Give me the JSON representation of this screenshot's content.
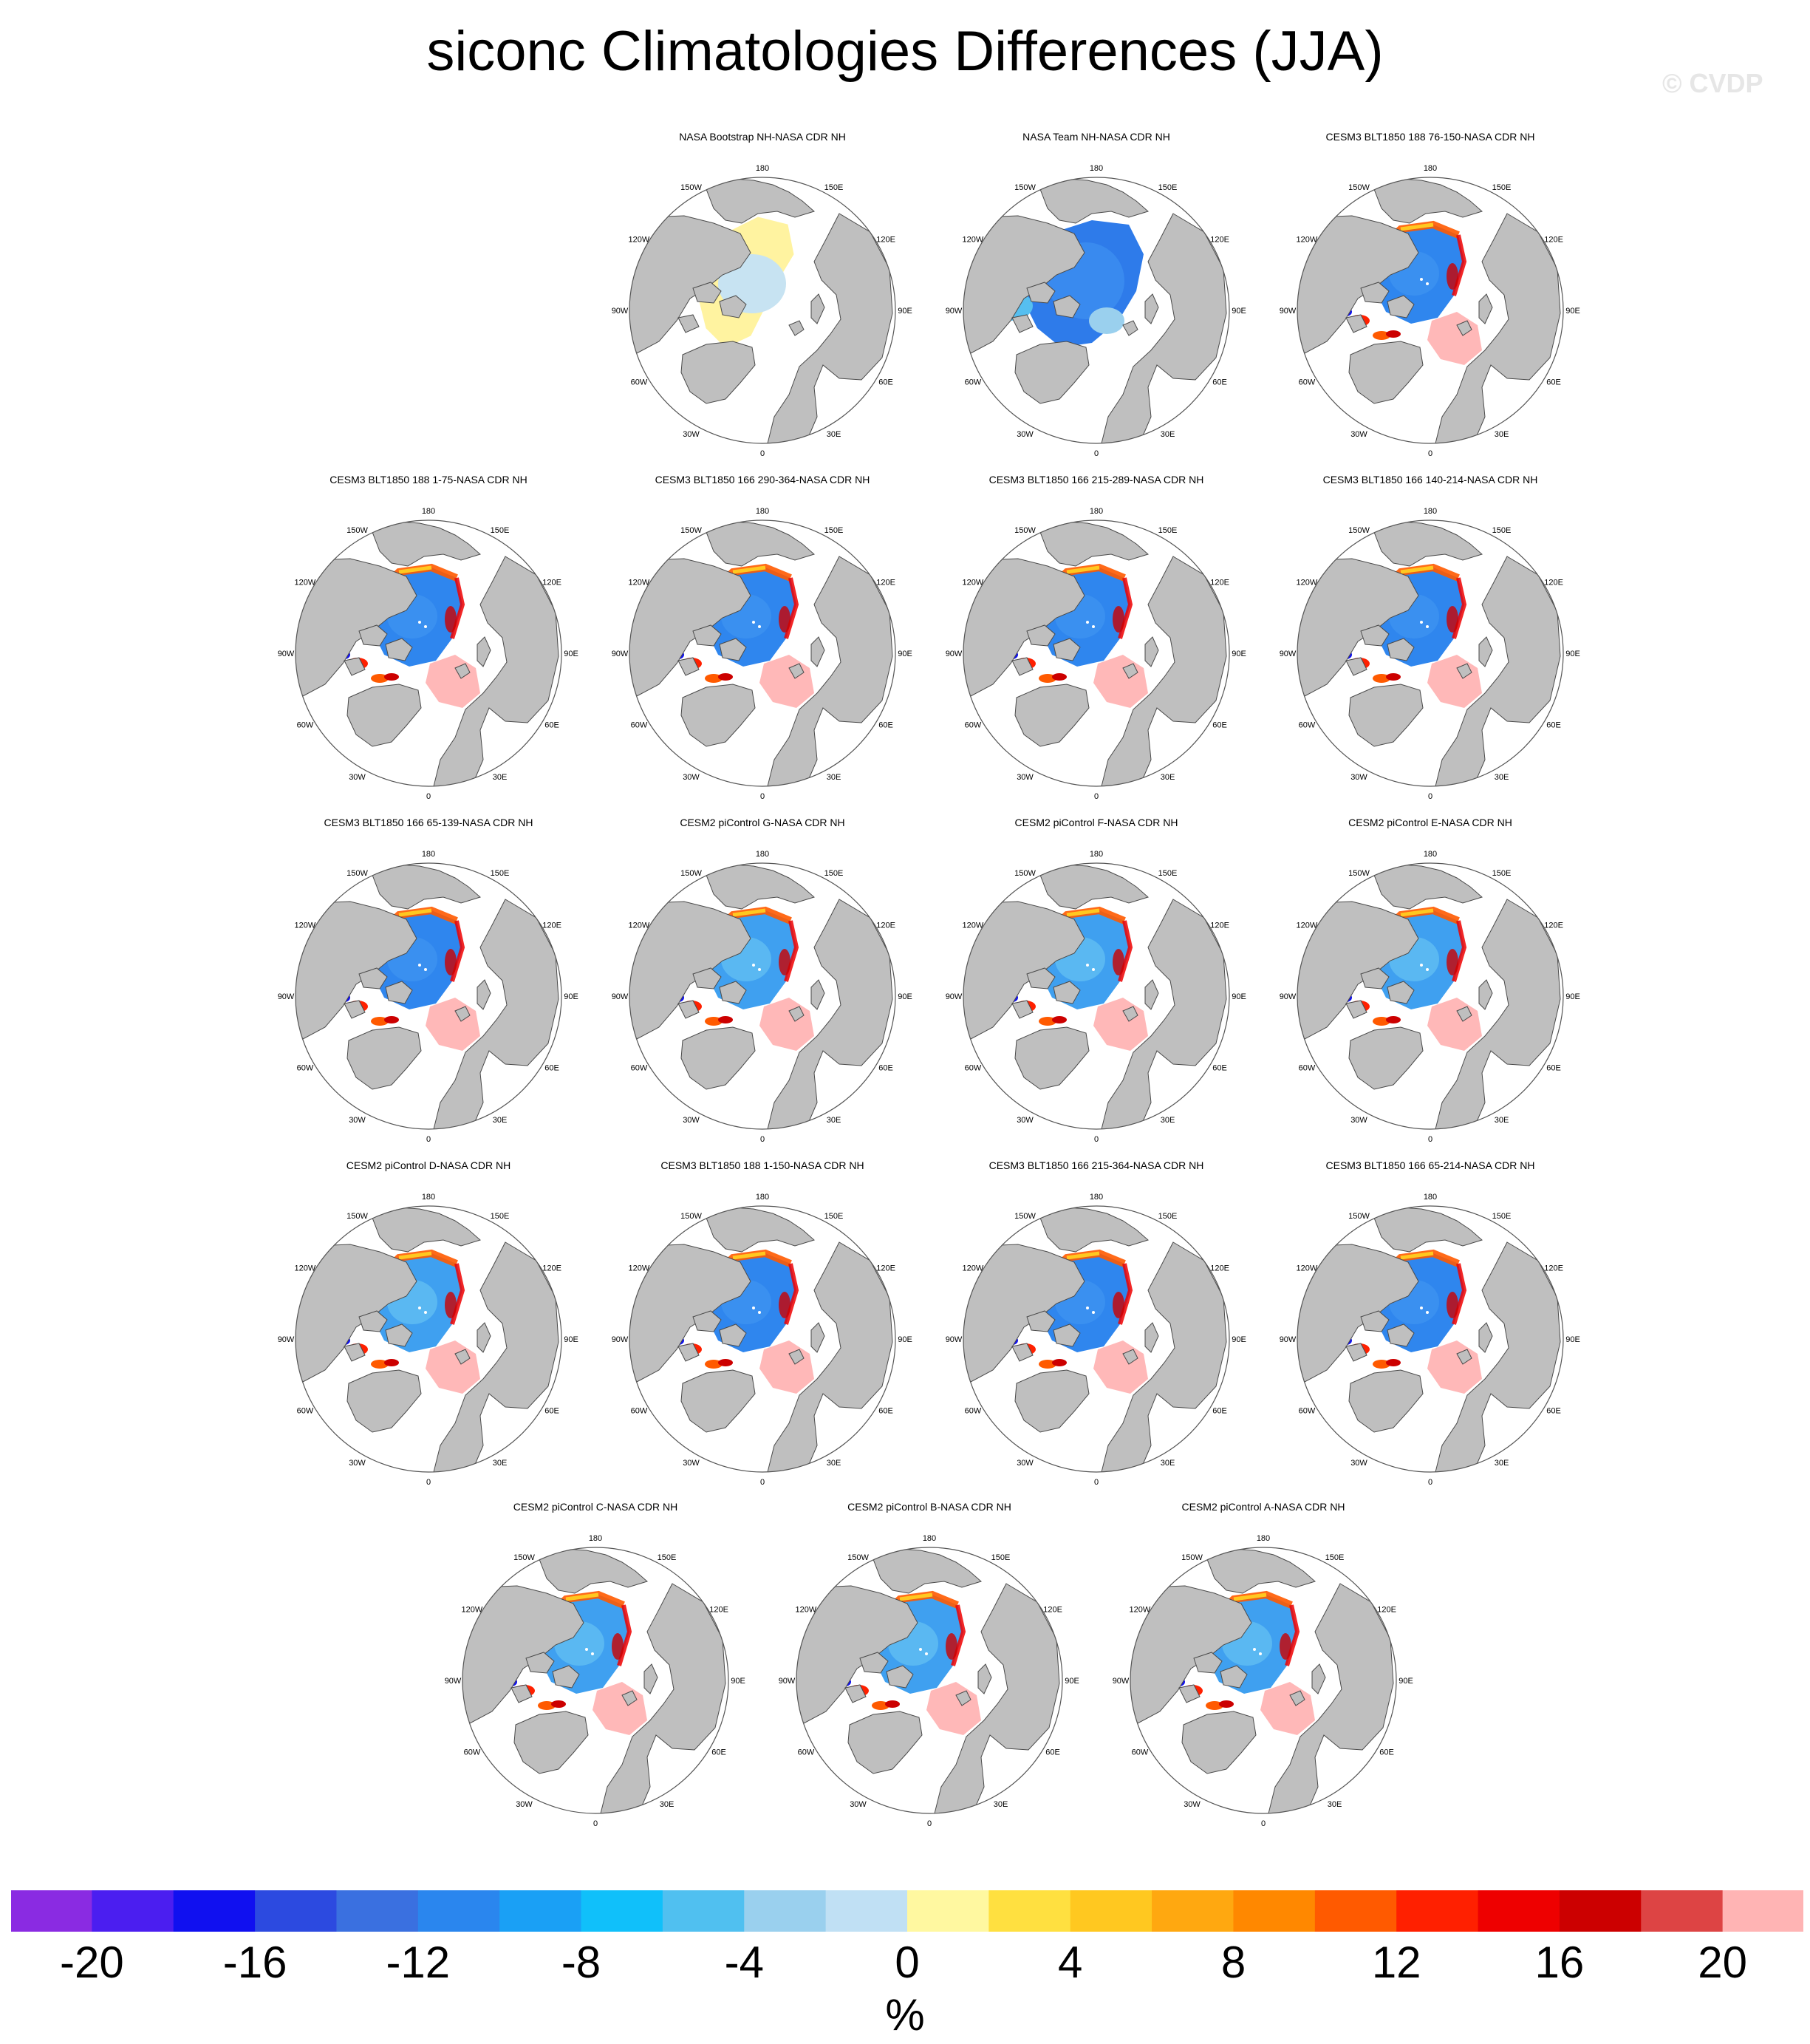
{
  "title": "siconc Climatologies Differences (JJA)",
  "watermark": "© CVDP",
  "longitude_labels": [
    "180",
    "150E",
    "120E",
    "90E",
    "60E",
    "30E",
    "0",
    "30W",
    "60W",
    "90W",
    "120W",
    "150W"
  ],
  "panels": [
    {
      "title": "NASA Bootstrap NH-NASA CDR NH",
      "pattern": "bootstrap"
    },
    {
      "title": "NASA Team NH-NASA CDR NH",
      "pattern": "team"
    },
    {
      "title": "CESM3 BLT1850 188 76-150-NASA CDR NH",
      "pattern": "cesm3"
    },
    {
      "title": "CESM3 BLT1850 188 1-75-NASA CDR NH",
      "pattern": "cesm3"
    },
    {
      "title": "CESM3 BLT1850 166 290-364-NASA CDR NH",
      "pattern": "cesm3"
    },
    {
      "title": "CESM3 BLT1850 166 215-289-NASA CDR NH",
      "pattern": "cesm3"
    },
    {
      "title": "CESM3 BLT1850 166 140-214-NASA CDR NH",
      "pattern": "cesm3"
    },
    {
      "title": "CESM3 BLT1850 166 65-139-NASA CDR NH",
      "pattern": "cesm3"
    },
    {
      "title": "CESM2 piControl G-NASA CDR NH",
      "pattern": "cesm2"
    },
    {
      "title": "CESM2 piControl F-NASA CDR NH",
      "pattern": "cesm2"
    },
    {
      "title": "CESM2 piControl E-NASA CDR NH",
      "pattern": "cesm2"
    },
    {
      "title": "CESM2 piControl D-NASA CDR NH",
      "pattern": "cesm2"
    },
    {
      "title": "CESM3 BLT1850 188 1-150-NASA CDR NH",
      "pattern": "cesm3"
    },
    {
      "title": "CESM3 BLT1850 166 215-364-NASA CDR NH",
      "pattern": "cesm3"
    },
    {
      "title": "CESM3 BLT1850 166 65-214-NASA CDR NH",
      "pattern": "cesm3"
    },
    {
      "title": "CESM2 piControl C-NASA CDR NH",
      "pattern": "cesm2"
    },
    {
      "title": "CESM2 piControl B-NASA CDR NH",
      "pattern": "cesm2"
    },
    {
      "title": "CESM2 piControl A-NASA CDR NH",
      "pattern": "cesm2"
    }
  ],
  "colorbar": {
    "colors": [
      "#8a2be2",
      "#4b1ef0",
      "#1010f0",
      "#2c4ae0",
      "#3a70e0",
      "#2a86ee",
      "#1aa0f5",
      "#10c0fa",
      "#50c0f0",
      "#9ad0ee",
      "#c0e0f4",
      "#fff8a0",
      "#ffe040",
      "#ffc820",
      "#ffa810",
      "#ff8800",
      "#ff5a00",
      "#ff2000",
      "#ee0000",
      "#cc0000",
      "#dd4444",
      "#ffb4b4"
    ],
    "ticks": [
      "-20",
      "-16",
      "-12",
      "-8",
      "-4",
      "0",
      "4",
      "8",
      "12",
      "16",
      "20"
    ],
    "unit": "%"
  },
  "colors": {
    "land": "#bfbfbf",
    "coast": "#4a4a4a",
    "ocean": "#ffffff"
  }
}
